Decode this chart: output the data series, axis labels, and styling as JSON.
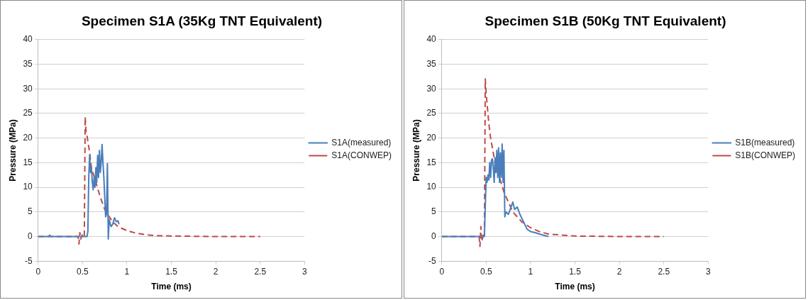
{
  "chart_data": [
    {
      "type": "line",
      "title": "Specimen S1A (35Kg TNT Equivalent)",
      "xlabel": "Time (ms)",
      "ylabel": "Pressure (MPa)",
      "xlim": [
        0,
        3
      ],
      "xticks": [
        0,
        0.5,
        1,
        1.5,
        2,
        2.5,
        3
      ],
      "ylim": [
        -5,
        40
      ],
      "yticks": [
        -5,
        0,
        5,
        10,
        15,
        20,
        25,
        30,
        35,
        40
      ],
      "grid": "y",
      "legend": "right",
      "marker": "none",
      "series": [
        {
          "name": "S1A(measured)",
          "color": "#4a7ebb",
          "line_style": "solid",
          "x": [
            0,
            0.12,
            0.13,
            0.14,
            0.55,
            0.56,
            0.57,
            0.58,
            0.59,
            0.6,
            0.61,
            0.62,
            0.63,
            0.64,
            0.65,
            0.66,
            0.67,
            0.68,
            0.69,
            0.7,
            0.71,
            0.72,
            0.73,
            0.74,
            0.75,
            0.76,
            0.77,
            0.78,
            0.79,
            0.8,
            0.82,
            0.84,
            0.86,
            0.88,
            0.9,
            0.91
          ],
          "values": [
            0,
            0,
            0.3,
            0,
            0,
            1,
            12,
            16.5,
            13,
            14,
            11,
            9.5,
            12,
            10,
            14,
            11,
            16.5,
            12,
            17.5,
            13,
            15,
            18.7,
            15,
            12,
            8,
            4,
            4.5,
            14.8,
            -0.5,
            3.5,
            2,
            2.5,
            3.8,
            3,
            3.2,
            2.5
          ]
        },
        {
          "name": "S1A(CONWEP)",
          "color": "#be4b48",
          "line_style": "dashed",
          "x": [
            0,
            0.45,
            0.46,
            0.47,
            0.48,
            0.5,
            0.52,
            0.53,
            0.54,
            0.55,
            0.58,
            0.6,
            0.65,
            0.7,
            0.75,
            0.8,
            0.85,
            0.9,
            1,
            1.1,
            1.2,
            1.3,
            1.5,
            2,
            2.5
          ],
          "values": [
            0,
            0,
            -1.5,
            0.8,
            -0.5,
            0.5,
            0,
            24.3,
            21,
            20.5,
            17,
            14,
            11,
            8,
            5.5,
            4,
            2.8,
            2,
            1.2,
            0.7,
            0.4,
            0.2,
            0.1,
            0,
            0
          ]
        }
      ]
    },
    {
      "type": "line",
      "title": "Specimen S1B (50Kg TNT Equivalent)",
      "xlabel": "Time (ms)",
      "ylabel": "Pressure (MPa)",
      "xlim": [
        0,
        3
      ],
      "xticks": [
        0,
        0.5,
        1,
        1.5,
        2,
        2.5,
        3
      ],
      "ylim": [
        -5,
        40
      ],
      "yticks": [
        -5,
        0,
        5,
        10,
        15,
        20,
        25,
        30,
        35,
        40
      ],
      "grid": "y",
      "legend": "right",
      "marker": "none",
      "series": [
        {
          "name": "S1B(measured)",
          "color": "#4a7ebb",
          "line_style": "solid",
          "x": [
            0,
            0.48,
            0.5,
            0.51,
            0.52,
            0.53,
            0.54,
            0.55,
            0.56,
            0.57,
            0.58,
            0.59,
            0.6,
            0.61,
            0.62,
            0.63,
            0.64,
            0.65,
            0.66,
            0.67,
            0.68,
            0.69,
            0.7,
            0.71,
            0.72,
            0.75,
            0.78,
            0.8,
            0.82,
            0.85,
            0.88,
            0.92,
            0.96,
            1,
            1.05,
            1.1,
            1.2
          ],
          "values": [
            0,
            0,
            12,
            11,
            12.5,
            11.5,
            15,
            12,
            15.5,
            15.8,
            14,
            11,
            16,
            13,
            17.5,
            12,
            18,
            11,
            17,
            12,
            18.8,
            11,
            17.5,
            4,
            5,
            4.5,
            6,
            7,
            5.5,
            6,
            4.5,
            3,
            1.5,
            1,
            0.8,
            0.5,
            0
          ]
        },
        {
          "name": "S1B(CONWEP)",
          "color": "#be4b48",
          "line_style": "dashed",
          "x": [
            0,
            0.42,
            0.43,
            0.44,
            0.45,
            0.47,
            0.48,
            0.49,
            0.5,
            0.51,
            0.52,
            0.53,
            0.55,
            0.6,
            0.65,
            0.7,
            0.75,
            0.8,
            0.85,
            0.9,
            1,
            1.1,
            1.2,
            1.5,
            2,
            2.5
          ],
          "values": [
            0,
            0,
            -2,
            2,
            -1,
            0.5,
            0,
            32,
            29,
            27,
            25,
            23,
            20,
            15,
            12,
            9,
            7,
            5,
            4,
            3,
            1.8,
            1,
            0.5,
            0.1,
            0,
            0
          ]
        }
      ]
    }
  ]
}
